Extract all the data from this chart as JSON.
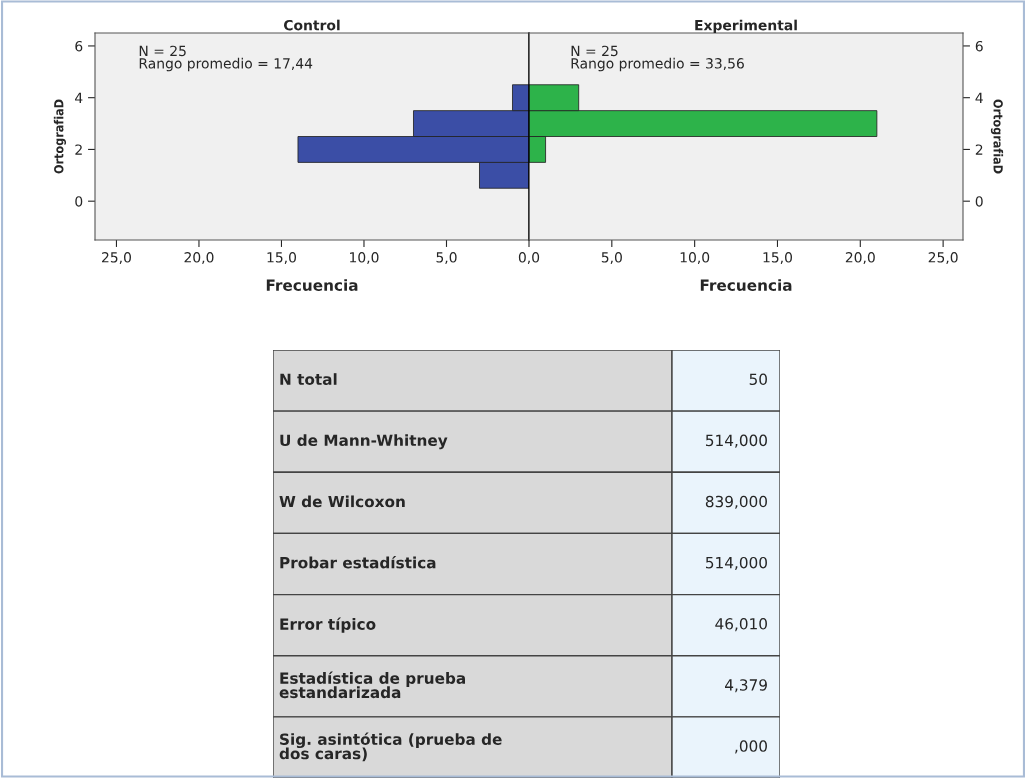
{
  "chart_data": [
    {
      "type": "histogram",
      "orientation": "horizontal",
      "title": "Control",
      "xlabel": "Frecuencia",
      "ylabel": "OrtografiaD",
      "bins": [
        0.5,
        1.5,
        2.5,
        3.5,
        4.5
      ],
      "values": [
        3,
        14,
        7,
        1
      ],
      "color": "#3b4ea6",
      "xlim": [
        26.3,
        0
      ],
      "xticks": [
        {
          "value": 25,
          "label": "25,0"
        },
        {
          "value": 20,
          "label": "20,0"
        },
        {
          "value": 15,
          "label": "15,0"
        },
        {
          "value": 10,
          "label": "10,0"
        },
        {
          "value": 5,
          "label": "5,0"
        },
        {
          "value": 0,
          "label": "0,0"
        }
      ],
      "ylim": [
        -1.5,
        6.5
      ],
      "yticks": [
        0,
        2,
        4,
        6
      ],
      "grid": false,
      "annotations": [
        "N = 25",
        "Rango promedio = 17,44"
      ]
    },
    {
      "type": "histogram",
      "orientation": "horizontal",
      "title": "Experimental",
      "xlabel": "Frecuencia",
      "ylabel": "OrtografiaD",
      "bins": [
        0.5,
        1.5,
        2.5,
        3.5,
        4.5
      ],
      "values": [
        0,
        1,
        21,
        3
      ],
      "color": "#2db34a",
      "xlim": [
        0,
        26.2
      ],
      "xticks": [
        {
          "value": 5,
          "label": "5,0"
        },
        {
          "value": 10,
          "label": "10,0"
        },
        {
          "value": 15,
          "label": "15,0"
        },
        {
          "value": 20,
          "label": "20,0"
        },
        {
          "value": 25,
          "label": "25,0"
        }
      ],
      "ylim": [
        -1.5,
        6.5
      ],
      "yticks": [
        0,
        2,
        4,
        6
      ],
      "grid": false,
      "annotations": [
        "N = 25",
        "Rango promedio = 33,56"
      ]
    },
    {
      "type": "other",
      "categories": [
        "N total",
        "U de Mann-Whitney",
        "W de Wilcoxon",
        "Probar estadística",
        "Error típico",
        "Estadística de prueba estandarizada",
        "Sig. asintótica (prueba de dos caras)"
      ],
      "value_labels": [
        "50",
        "514,000",
        "839,000",
        "514,000",
        "46,010",
        "4,379",
        ",000"
      ]
    }
  ]
}
